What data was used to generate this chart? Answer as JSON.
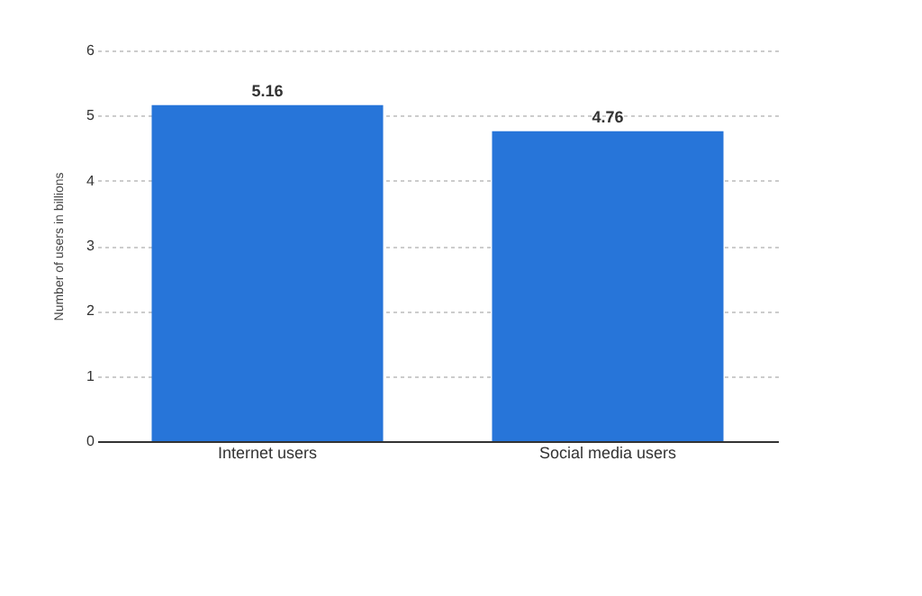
{
  "chart_data": {
    "type": "bar",
    "ylabel": "Number of users in billions",
    "categories": [
      "Internet users",
      "Social media users"
    ],
    "values": [
      5.16,
      4.76
    ],
    "color": "#2775d9",
    "ylim": [
      0,
      6
    ],
    "yticks": [
      0,
      1,
      2,
      3,
      4,
      5,
      6
    ],
    "grid": "y",
    "data_labels": true
  }
}
